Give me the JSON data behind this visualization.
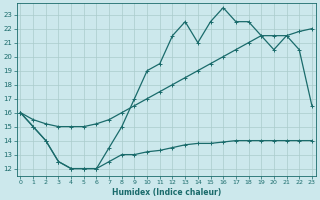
{
  "xlabel": "Humidex (Indice chaleur)",
  "bg_color": "#cce8ec",
  "grid_color": "#aacccc",
  "line_color": "#1a6b6b",
  "x_ticks": [
    0,
    1,
    2,
    3,
    4,
    5,
    6,
    7,
    8,
    9,
    10,
    11,
    12,
    13,
    14,
    15,
    16,
    17,
    18,
    19,
    20,
    21,
    22,
    23
  ],
  "y_ticks": [
    12,
    13,
    14,
    15,
    16,
    17,
    18,
    19,
    20,
    21,
    22,
    23
  ],
  "ylim": [
    11.5,
    23.8
  ],
  "xlim": [
    -0.3,
    23.3
  ],
  "line1_x": [
    0,
    1,
    2,
    3,
    4,
    5,
    6,
    7,
    8,
    9,
    10,
    11,
    12,
    13,
    14,
    15,
    16,
    17,
    18,
    19,
    20,
    21,
    22,
    23
  ],
  "line1_y": [
    16.0,
    15.0,
    14.0,
    12.5,
    12.0,
    12.0,
    12.0,
    12.5,
    13.0,
    13.0,
    13.2,
    13.3,
    13.5,
    13.7,
    13.8,
    13.8,
    13.9,
    14.0,
    14.0,
    14.0,
    14.0,
    14.0,
    14.0,
    14.0
  ],
  "line2_x": [
    0,
    1,
    2,
    3,
    4,
    5,
    6,
    7,
    8,
    9,
    10,
    11,
    12,
    13,
    14,
    15,
    16,
    17,
    18,
    19,
    20,
    21,
    22,
    23
  ],
  "line2_y": [
    16.0,
    15.5,
    15.2,
    15.0,
    15.0,
    15.0,
    15.2,
    15.5,
    16.0,
    16.5,
    17.0,
    17.5,
    18.0,
    18.5,
    19.0,
    19.5,
    20.0,
    20.5,
    21.0,
    21.5,
    21.5,
    21.5,
    21.8,
    22.0
  ],
  "line3_x": [
    0,
    1,
    2,
    3,
    4,
    5,
    6,
    7,
    8,
    9,
    10,
    11,
    12,
    13,
    14,
    15,
    16,
    17,
    18,
    19,
    20,
    21,
    22,
    23
  ],
  "line3_y": [
    16.0,
    15.0,
    14.0,
    12.5,
    12.0,
    12.0,
    12.0,
    13.5,
    15.0,
    17.0,
    19.0,
    19.5,
    21.5,
    22.5,
    21.0,
    22.5,
    23.5,
    22.5,
    22.5,
    21.5,
    20.5,
    21.5,
    20.5,
    16.5
  ]
}
